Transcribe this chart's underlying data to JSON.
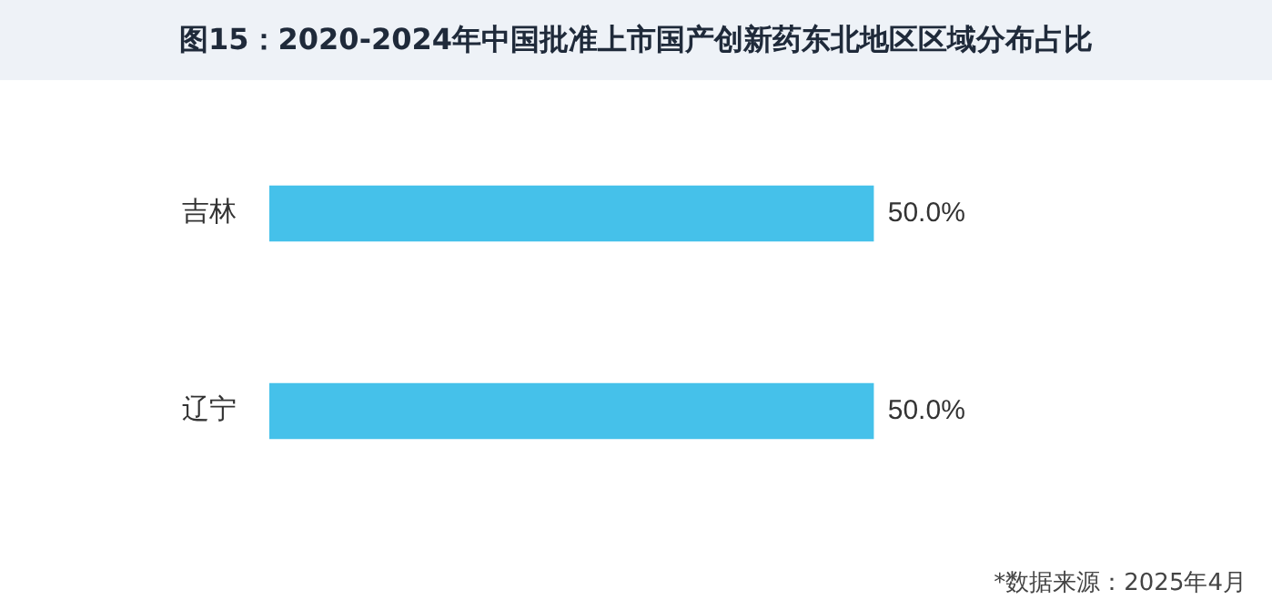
{
  "chart_data": {
    "type": "bar",
    "orientation": "horizontal",
    "title": "图15：2020-2024年中国批准上市国产创新药东北地区区域分布占比",
    "categories": [
      "吉林",
      "辽宁"
    ],
    "values": [
      50,
      50
    ],
    "color": "#45c1ea",
    "value_labels": [
      "50.0%",
      "50.0%"
    ],
    "legend": false,
    "annotations": [
      "*数据来源：2025年4月"
    ]
  }
}
